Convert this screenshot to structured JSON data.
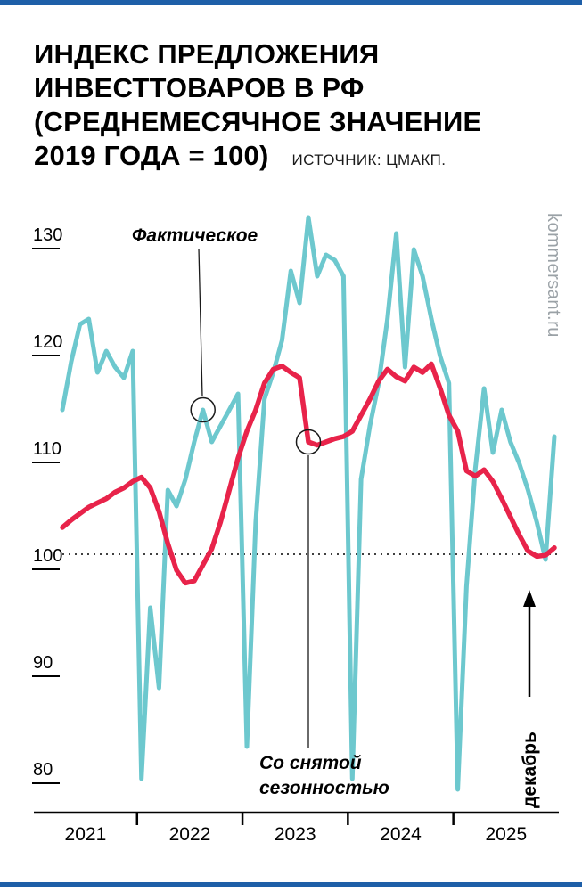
{
  "header": {
    "title_lines": [
      "ИНДЕКС ПРЕДЛОЖЕНИЯ",
      "ИНВЕСТТОВАРОВ В РФ",
      "(СРЕДНЕМЕСЯЧНОЕ ЗНАЧЕНИЕ",
      "2019 ГОДА = 100)"
    ],
    "source": "ИСТОЧНИК: ЦМАКП."
  },
  "chart_data": {
    "type": "line",
    "title": "Индекс предложения инвесттоваров в РФ (среднемесячное значение 2019 года = 100)",
    "source": "ИСТОЧНИК: ЦМАКП.",
    "x_unit": "month",
    "x_start": "2021-04",
    "x_end": "2025-12",
    "year_labels": [
      "2021",
      "2022",
      "2023",
      "2024",
      "2025"
    ],
    "year_boundary_indices": [
      8.5,
      20.5,
      32.5,
      44.5
    ],
    "ylim": [
      76,
      133
    ],
    "yticks": [
      80,
      90,
      100,
      110,
      120,
      130
    ],
    "reference_line": 100,
    "grid": false,
    "legend_position": "inline-callouts",
    "colors": {
      "actual": "#6DC8CE",
      "seasonally_adjusted": "#E8234A",
      "frame_blue": "#1E5FA8",
      "watermark_gray": "#9AA1A6"
    },
    "series": [
      {
        "name": "Фактическое",
        "color": "#6DC8CE",
        "values": [
          113.5,
          118,
          121.5,
          122,
          117,
          119,
          117.5,
          116.5,
          119,
          79,
          95,
          87.5,
          106,
          104.5,
          107,
          110.5,
          113.5,
          110.5,
          112,
          113.5,
          115,
          82,
          103,
          114.5,
          117,
          120,
          126.5,
          123.5,
          131.5,
          126,
          128,
          127.5,
          126,
          79,
          107,
          112,
          116,
          122,
          130,
          117.5,
          128.5,
          126,
          122,
          118.5,
          116,
          78,
          97,
          108,
          115.5,
          109.5,
          113.5,
          110.5,
          108.5,
          106,
          103,
          99.5,
          111
        ]
      },
      {
        "name": "Со снятой сезонностью",
        "color": "#E8234A",
        "values": [
          102.5,
          103.2,
          103.8,
          104.4,
          104.8,
          105.2,
          105.8,
          106.2,
          106.8,
          107.2,
          106.2,
          104,
          101,
          98.5,
          97.3,
          97.5,
          99,
          100.5,
          103,
          106,
          109,
          111.5,
          113.5,
          116,
          117.3,
          117.6,
          117,
          116.5,
          110.5,
          110.2,
          110.5,
          110.8,
          111,
          111.5,
          113,
          114.5,
          116.2,
          117.3,
          116.6,
          116.2,
          117.5,
          117,
          117.8,
          115.5,
          113,
          111.5,
          107.8,
          107.3,
          107.9,
          106.8,
          105.2,
          103.5,
          101.8,
          100.3,
          99.8,
          99.9,
          100.6
        ]
      }
    ],
    "callouts": [
      {
        "label_lines": [
          "Фактическое"
        ],
        "series_index": 0,
        "point_index": 16,
        "label_position": "above"
      },
      {
        "label_lines": [
          "Со снятой",
          "сезонностью"
        ],
        "series_index": 1,
        "point_index": 28,
        "label_position": "below"
      }
    ],
    "arrow_label": "декабрь",
    "watermark": "kommersant.ru"
  }
}
